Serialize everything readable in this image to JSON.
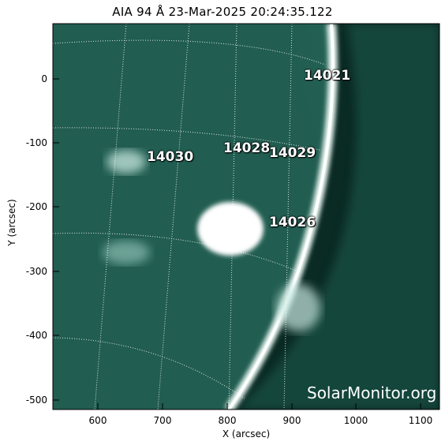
{
  "title": "AIA 94 Å 23-Mar-2025 20:24:35.122",
  "xlabel": "X (arcsec)",
  "ylabel": "Y (arcsec)",
  "x_ticks": [
    "600",
    "700",
    "800",
    "900",
    "1000",
    "1100"
  ],
  "y_ticks": [
    "0",
    "-100",
    "-200",
    "-300",
    "-400",
    "-500"
  ],
  "regions": [
    "14021",
    "14028",
    "14029",
    "14030",
    "14026"
  ],
  "watermark": "SolarMonitor.org",
  "colors": {
    "disk": "#2a6e60",
    "limb": "#e8f5f1",
    "space": "#06201b"
  }
}
